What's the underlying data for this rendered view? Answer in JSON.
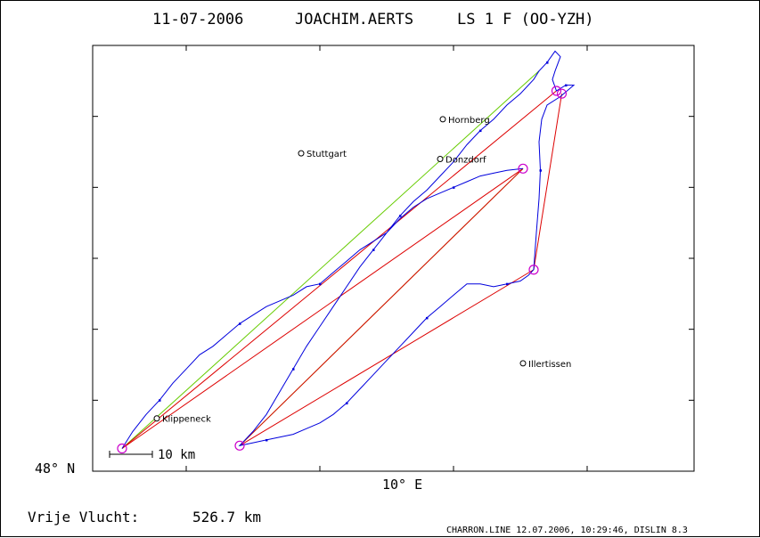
{
  "header": {
    "date": "11-07-2006",
    "pilot": "JOACHIM.AERTS",
    "glider": "LS 1 F (OO-YZH)"
  },
  "footer": {
    "distance_label": "Vrije Vlucht:",
    "distance_value": "526.7 km",
    "meta": "CHARRON.LINE 12.07.2006, 10:29:46, DISLIN 8.3"
  },
  "axes": {
    "x_tick_label": "10° E",
    "y_tick_label": "48° N",
    "scale_label": "10 km"
  },
  "colors": {
    "track": "#0000dd",
    "legs": "#dd0000",
    "alt_legs": "#66cc00",
    "turnpoints": "#cc00cc"
  },
  "chart_data": {
    "type": "map",
    "x_unit": "degrees longitude (E)",
    "y_unit": "degrees latitude (N)",
    "xlim": [
      8.65,
      10.9
    ],
    "ylim": [
      48.0,
      48.75
    ],
    "tick_longitudes": [
      9.0,
      9.5,
      10.0,
      10.5
    ],
    "tick_latitudes": [
      48.125,
      48.25,
      48.375,
      48.5,
      48.625
    ],
    "places": [
      {
        "name": "Stuttgart",
        "lon": 9.43,
        "lat": 48.56
      },
      {
        "name": "Hornberg",
        "lon": 9.96,
        "lat": 48.62
      },
      {
        "name": "Donzdorf",
        "lon": 9.95,
        "lat": 48.55
      },
      {
        "name": "Illertissen",
        "lon": 10.26,
        "lat": 48.19
      },
      {
        "name": "Klippeneck",
        "lon": 8.89,
        "lat": 48.093
      }
    ],
    "turnpoints": [
      {
        "lon": 8.76,
        "lat": 48.04
      },
      {
        "lon": 9.2,
        "lat": 48.045
      },
      {
        "lon": 10.26,
        "lat": 48.533
      },
      {
        "lon": 10.3,
        "lat": 48.355
      },
      {
        "lon": 10.385,
        "lat": 48.67
      },
      {
        "lon": 10.405,
        "lat": 48.665
      }
    ],
    "legs_red": [
      [
        [
          8.76,
          48.04
        ],
        [
          10.26,
          48.533
        ]
      ],
      [
        [
          8.76,
          48.04
        ],
        [
          10.385,
          48.67
        ]
      ],
      [
        [
          9.2,
          48.045
        ],
        [
          10.26,
          48.533
        ]
      ],
      [
        [
          9.2,
          48.045
        ],
        [
          10.3,
          48.355
        ]
      ],
      [
        [
          10.3,
          48.355
        ],
        [
          10.405,
          48.665
        ]
      ]
    ],
    "legs_green": [
      [
        [
          8.76,
          48.04
        ],
        [
          10.32,
          48.705
        ]
      ],
      [
        [
          9.2,
          48.045
        ],
        [
          10.26,
          48.533
        ]
      ]
    ],
    "track": [
      [
        8.76,
        48.04
      ],
      [
        8.8,
        48.07
      ],
      [
        8.85,
        48.1
      ],
      [
        8.9,
        48.125
      ],
      [
        8.95,
        48.155
      ],
      [
        9.0,
        48.18
      ],
      [
        9.05,
        48.205
      ],
      [
        9.1,
        48.22
      ],
      [
        9.15,
        48.24
      ],
      [
        9.2,
        48.26
      ],
      [
        9.25,
        48.275
      ],
      [
        9.3,
        48.29
      ],
      [
        9.35,
        48.3
      ],
      [
        9.4,
        48.31
      ],
      [
        9.45,
        48.325
      ],
      [
        9.5,
        48.33
      ],
      [
        9.55,
        48.35
      ],
      [
        9.6,
        48.37
      ],
      [
        9.65,
        48.39
      ],
      [
        9.7,
        48.405
      ],
      [
        9.75,
        48.42
      ],
      [
        9.8,
        48.45
      ],
      [
        9.85,
        48.475
      ],
      [
        9.9,
        48.495
      ],
      [
        9.95,
        48.52
      ],
      [
        10.0,
        48.545
      ],
      [
        10.05,
        48.575
      ],
      [
        10.1,
        48.6
      ],
      [
        10.15,
        48.62
      ],
      [
        10.2,
        48.645
      ],
      [
        10.25,
        48.665
      ],
      [
        10.3,
        48.69
      ],
      [
        10.32,
        48.705
      ],
      [
        10.35,
        48.72
      ],
      [
        10.38,
        48.74
      ],
      [
        10.4,
        48.73
      ],
      [
        10.38,
        48.705
      ],
      [
        10.37,
        48.69
      ],
      [
        10.385,
        48.67
      ],
      [
        10.42,
        48.68
      ],
      [
        10.45,
        48.68
      ],
      [
        10.4,
        48.66
      ],
      [
        10.35,
        48.645
      ],
      [
        10.33,
        48.62
      ],
      [
        10.32,
        48.58
      ],
      [
        10.325,
        48.53
      ],
      [
        10.32,
        48.48
      ],
      [
        10.31,
        48.42
      ],
      [
        10.3,
        48.355
      ],
      [
        10.28,
        48.345
      ],
      [
        10.25,
        48.335
      ],
      [
        10.2,
        48.33
      ],
      [
        10.15,
        48.325
      ],
      [
        10.1,
        48.33
      ],
      [
        10.05,
        48.33
      ],
      [
        10.0,
        48.31
      ],
      [
        9.95,
        48.29
      ],
      [
        9.9,
        48.27
      ],
      [
        9.85,
        48.245
      ],
      [
        9.8,
        48.22
      ],
      [
        9.75,
        48.195
      ],
      [
        9.7,
        48.17
      ],
      [
        9.65,
        48.145
      ],
      [
        9.6,
        48.12
      ],
      [
        9.55,
        48.1
      ],
      [
        9.5,
        48.085
      ],
      [
        9.45,
        48.075
      ],
      [
        9.4,
        48.065
      ],
      [
        9.35,
        48.06
      ],
      [
        9.3,
        48.055
      ],
      [
        9.25,
        48.05
      ],
      [
        9.2,
        48.045
      ],
      [
        9.25,
        48.07
      ],
      [
        9.3,
        48.1
      ],
      [
        9.35,
        48.14
      ],
      [
        9.4,
        48.18
      ],
      [
        9.45,
        48.22
      ],
      [
        9.5,
        48.255
      ],
      [
        9.55,
        48.29
      ],
      [
        9.6,
        48.325
      ],
      [
        9.65,
        48.36
      ],
      [
        9.7,
        48.39
      ],
      [
        9.75,
        48.42
      ],
      [
        9.8,
        48.445
      ],
      [
        9.85,
        48.465
      ],
      [
        9.9,
        48.48
      ],
      [
        9.95,
        48.49
      ],
      [
        10.0,
        48.5
      ],
      [
        10.05,
        48.51
      ],
      [
        10.1,
        48.52
      ],
      [
        10.15,
        48.525
      ],
      [
        10.2,
        48.53
      ],
      [
        10.26,
        48.533
      ]
    ]
  }
}
